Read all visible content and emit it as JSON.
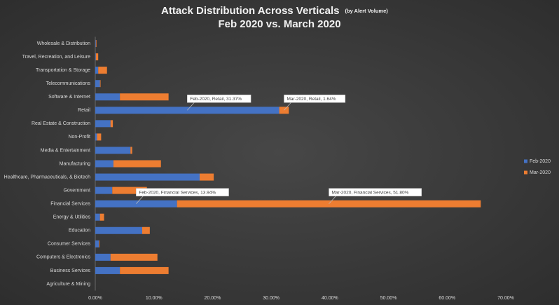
{
  "chart_data": {
    "type": "stacked-bar-horizontal",
    "title": "Attack Distribution Across Verticals",
    "title_note": "(by Alert Volume)",
    "subtitle": "Feb 2020 vs. March 2020",
    "categories": [
      "Wholesale & Distribution",
      "Travel, Recreation, and Leisure",
      "Transportation & Storage",
      "Telecommunications",
      "Software & Internet",
      "Retail",
      "Real Estate & Construction",
      "Non-Profit",
      "Media & Entertainment",
      "Manufacturing",
      "Healthcare, Pharmaceuticals, & Biotech",
      "Government",
      "Financial Services",
      "Energy & Utilities",
      "Education",
      "Consumer Services",
      "Computers & Electronics",
      "Business Services",
      "Agriculture & Mining"
    ],
    "series": [
      {
        "name": "Feb-2020",
        "color": "#4472c4",
        "values": [
          0.1,
          0.1,
          0.5,
          0.8,
          4.2,
          31.37,
          2.6,
          0.3,
          6.0,
          3.1,
          17.8,
          2.9,
          13.94,
          0.8,
          8.0,
          0.6,
          2.6,
          4.2,
          0
        ],
        "value_labels": [
          null,
          null,
          null,
          null,
          null,
          "Feb-2020, Retail, 31.37%",
          null,
          null,
          null,
          null,
          null,
          null,
          "Feb-2020, Financial Services, 13.94%",
          null,
          null,
          null,
          null,
          null,
          null
        ]
      },
      {
        "name": "Mar-2020",
        "color": "#ed7d31",
        "values": [
          0.1,
          0.4,
          1.5,
          0.1,
          8.3,
          1.64,
          0.4,
          0.7,
          0.3,
          8.1,
          2.4,
          5.9,
          51.8,
          0.7,
          1.3,
          0.1,
          8.0,
          8.3,
          0
        ],
        "value_labels": [
          null,
          null,
          null,
          null,
          null,
          "Mar-2020, Retail, 1.64%",
          null,
          null,
          null,
          null,
          null,
          null,
          "Mar-2020, Financial Services, 51.80%",
          null,
          null,
          null,
          null,
          null,
          null
        ]
      }
    ],
    "xlim": [
      0,
      70
    ],
    "xticks": [
      {
        "value": 0,
        "label": "0.00%"
      },
      {
        "value": 10,
        "label": "10.00%"
      },
      {
        "value": 20,
        "label": "20.00%"
      },
      {
        "value": 30,
        "label": "30.00%"
      },
      {
        "value": 40,
        "label": "40.00%"
      },
      {
        "value": 50,
        "label": "50.00%"
      },
      {
        "value": 60,
        "label": "60.00%"
      },
      {
        "value": 70,
        "label": "70.00%"
      }
    ],
    "grid": false
  }
}
